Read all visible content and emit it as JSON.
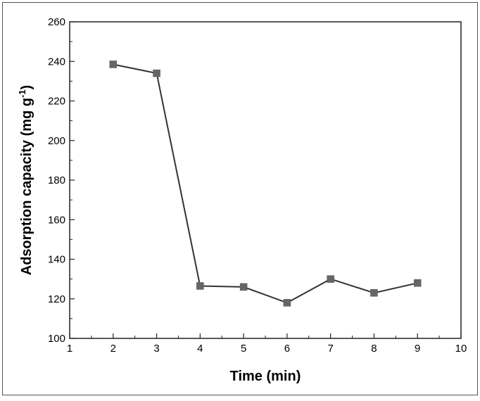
{
  "chart_data": {
    "type": "line",
    "title": "",
    "xlabel": "Time (min)",
    "ylabel": {
      "main": "Adsorption capacity (mg g",
      "superscript": "-1",
      "close": ")"
    },
    "xlim": [
      1,
      10
    ],
    "ylim": [
      100,
      260
    ],
    "xticks": [
      1,
      2,
      3,
      4,
      5,
      6,
      7,
      8,
      9,
      10
    ],
    "yticks": [
      100,
      120,
      140,
      160,
      180,
      200,
      220,
      240,
      260
    ],
    "grid": false,
    "legend": "none",
    "series": [
      {
        "x": [
          2,
          3,
          4,
          5,
          6,
          7,
          8,
          9
        ],
        "y": [
          238.5,
          234,
          126.5,
          126,
          118,
          130,
          123,
          128
        ],
        "color": "#333333",
        "marker": "square",
        "marker_color": "#666666"
      }
    ]
  }
}
